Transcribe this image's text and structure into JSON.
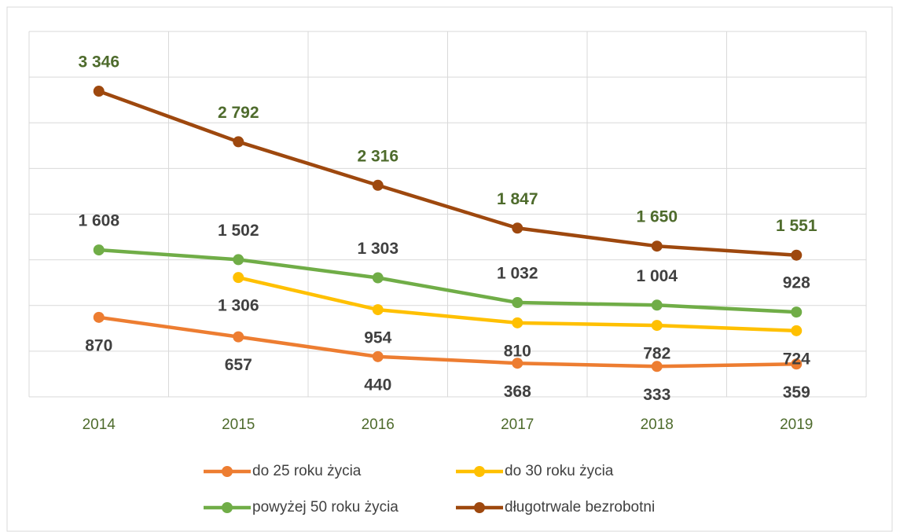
{
  "chart_data": {
    "type": "line",
    "categories": [
      "2014",
      "2015",
      "2016",
      "2017",
      "2018",
      "2019"
    ],
    "series": [
      {
        "name": "do 25 roku życia",
        "color": "#ED7D31",
        "label_color": "#404040",
        "label_position": "below",
        "values": [
          870,
          657,
          440,
          368,
          333,
          359
        ],
        "value_labels": [
          "870",
          "657",
          "440",
          "368",
          "333",
          "359"
        ]
      },
      {
        "name": "do 30 roku życia",
        "color": "#FFC000",
        "label_color": "#404040",
        "label_position": "below",
        "values": [
          null,
          1306,
          954,
          810,
          782,
          724
        ],
        "value_labels": [
          null,
          "1 306",
          "954",
          "810",
          "782",
          "724"
        ]
      },
      {
        "name": "powyżej 50 roku życia",
        "color": "#70AD47",
        "label_color": "#404040",
        "label_position": "above",
        "values": [
          1608,
          1502,
          1303,
          1032,
          1004,
          928
        ],
        "value_labels": [
          "1 608",
          "1 502",
          "1 303",
          "1 032",
          "1 004",
          "928"
        ]
      },
      {
        "name": "długotrwale bezrobotni",
        "color": "#9E480E",
        "label_color": "#4E6B2C",
        "label_position": "above",
        "values": [
          3346,
          2792,
          2316,
          1847,
          1650,
          1551
        ],
        "value_labels": [
          "3 346",
          "2 792",
          "2 316",
          "1 847",
          "1 650",
          "1 551"
        ]
      }
    ],
    "ylim": [
      0,
      4000
    ],
    "yticks": [
      0,
      500,
      1000,
      1500,
      2000,
      2500,
      3000,
      3500,
      4000
    ],
    "show_ytick_labels": false,
    "grid": true,
    "legend": "bottom"
  }
}
